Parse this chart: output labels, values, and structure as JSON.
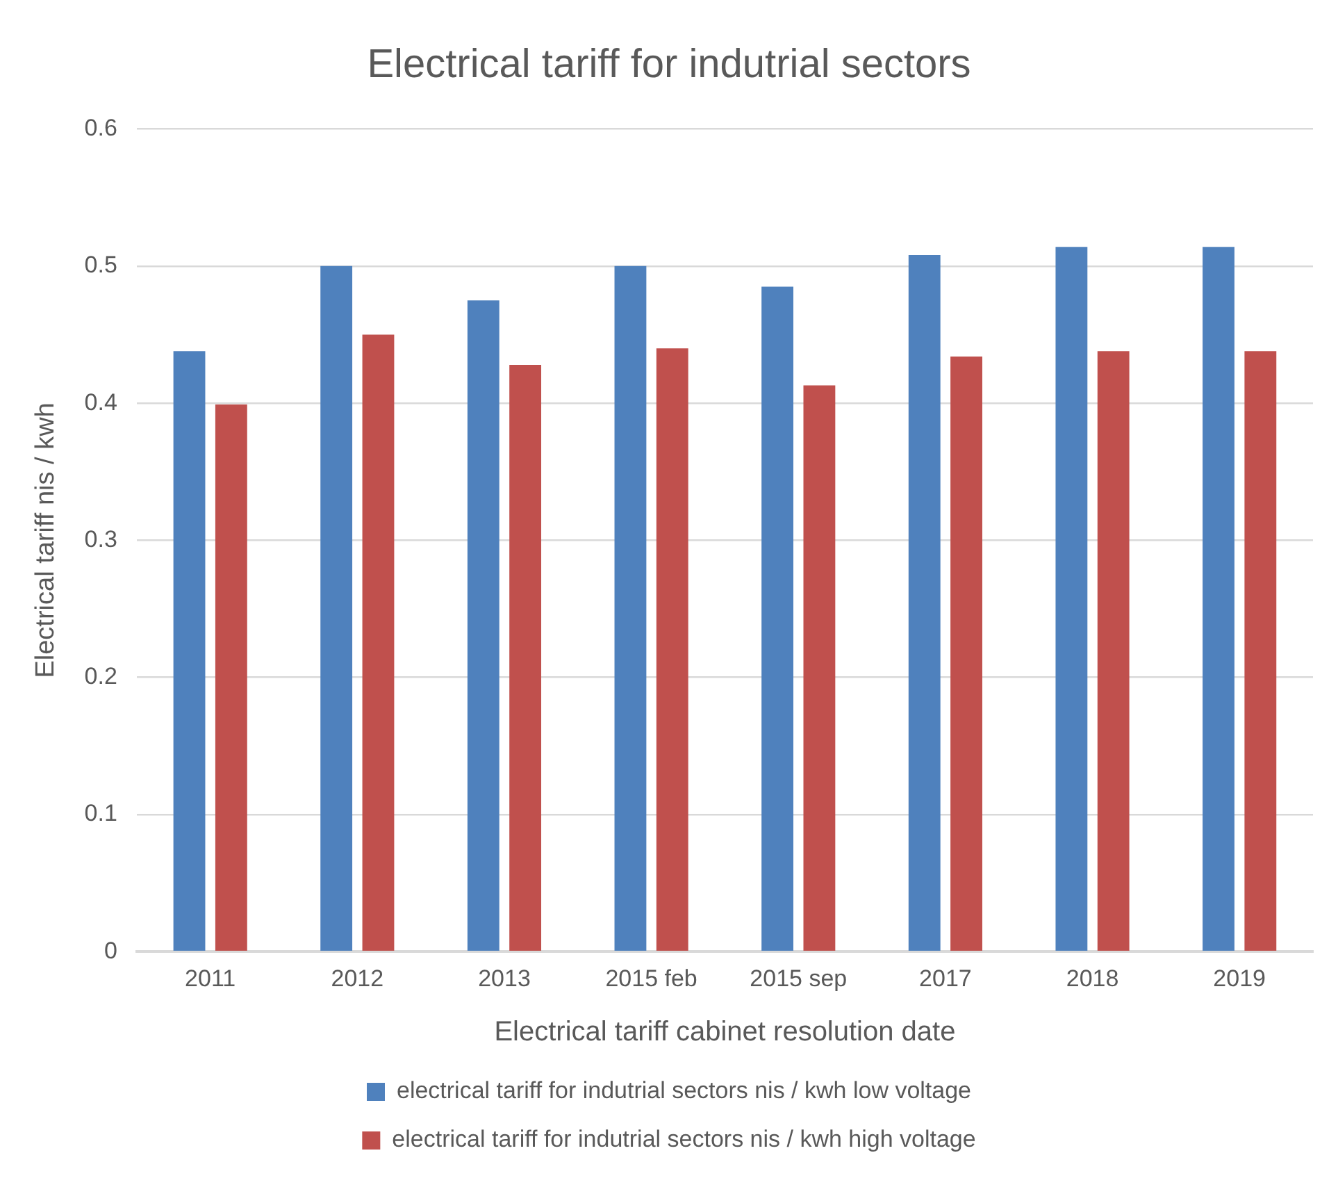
{
  "chart_data": {
    "type": "bar",
    "title": "Electrical tariff for indutrial sectors",
    "xlabel": "Electrical tariff cabinet resolution date",
    "ylabel": "Electrical tariff nis / kwh",
    "categories": [
      "2011",
      "2012",
      "2013",
      "2015 feb",
      "2015 sep",
      "2017",
      "2018",
      "2019"
    ],
    "series": [
      {
        "name": "electrical tariff for indutrial sectors nis / kwh low voltage",
        "color": "#4f81bd",
        "values": [
          0.438,
          0.5,
          0.475,
          0.5,
          0.485,
          0.508,
          0.514,
          0.514
        ]
      },
      {
        "name": "electrical tariff for indutrial sectors nis / kwh high voltage",
        "color": "#c0504d",
        "values": [
          0.399,
          0.45,
          0.428,
          0.44,
          0.413,
          0.434,
          0.438,
          0.438
        ]
      }
    ],
    "ylim": [
      0,
      0.6
    ],
    "yticks": [
      0,
      0.1,
      0.2,
      0.3,
      0.4,
      0.5,
      0.6
    ],
    "grid": "y",
    "legend": "bottom"
  }
}
